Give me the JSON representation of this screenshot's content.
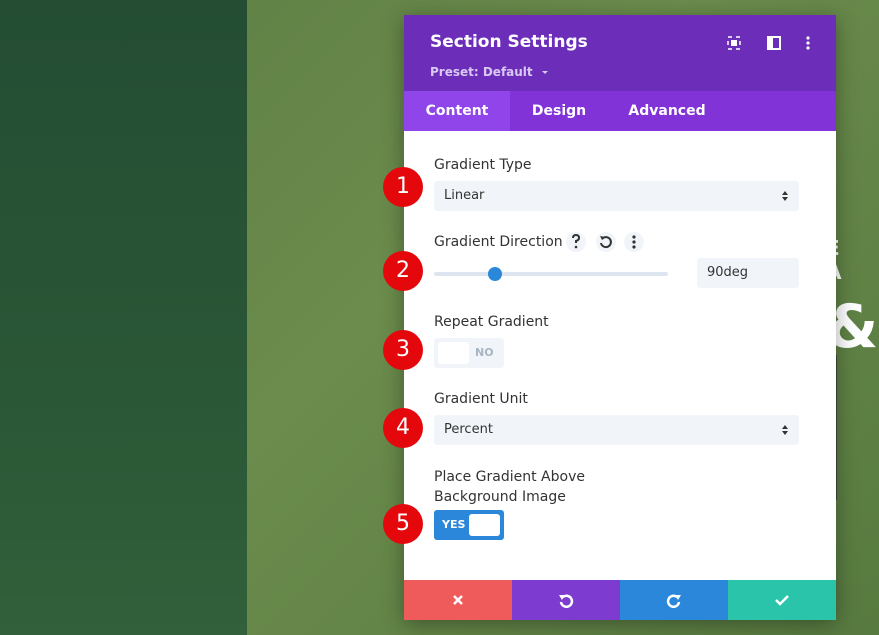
{
  "background": {
    "letters_top": "E A",
    "ampersand": "&"
  },
  "panel": {
    "title": "Section Settings",
    "preset": "Preset: Default",
    "tabs": [
      "Content",
      "Design",
      "Advanced"
    ],
    "fields": {
      "gradient_type": {
        "label": "Gradient Type",
        "value": "Linear"
      },
      "gradient_direction": {
        "label": "Gradient Direction",
        "value": "90deg"
      },
      "repeat_gradient": {
        "label": "Repeat Gradient",
        "value": "NO"
      },
      "gradient_unit": {
        "label": "Gradient Unit",
        "value": "Percent"
      },
      "place_above": {
        "label": "Place Gradient Above Background Image",
        "value": "YES"
      }
    }
  },
  "badges": [
    "1",
    "2",
    "3",
    "4",
    "5"
  ]
}
